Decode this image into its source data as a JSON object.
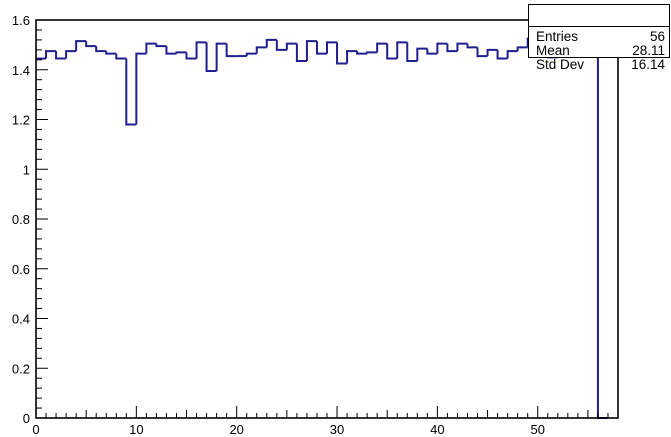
{
  "chart_data": {
    "type": "histogram",
    "title": "",
    "xlabel": "",
    "ylabel": "",
    "xlim": [
      0,
      58
    ],
    "ylim": [
      0,
      1.6
    ],
    "bin_width": 1,
    "x_major_ticks": [
      0,
      10,
      20,
      30,
      40,
      50
    ],
    "y_major_ticks": [
      0,
      0.2,
      0.4,
      0.6,
      0.8,
      1,
      1.2,
      1.4,
      1.6
    ],
    "y_tick_labels": [
      "0",
      "0.2",
      "0.4",
      "0.6",
      "0.8",
      "1",
      "1.2",
      "1.4",
      "1.6"
    ],
    "line_color": "#1f1f8f",
    "grid": false,
    "values": [
      1.445,
      1.475,
      1.445,
      1.475,
      1.515,
      1.495,
      1.475,
      1.465,
      1.445,
      1.18,
      1.465,
      1.505,
      1.495,
      1.465,
      1.47,
      1.445,
      1.51,
      1.395,
      1.505,
      1.455,
      1.455,
      1.465,
      1.49,
      1.52,
      1.48,
      1.505,
      1.435,
      1.515,
      1.465,
      1.51,
      1.425,
      1.475,
      1.465,
      1.47,
      1.505,
      1.445,
      1.51,
      1.435,
      1.485,
      1.465,
      1.505,
      1.475,
      1.505,
      1.49,
      1.455,
      1.48,
      1.445,
      1.475,
      1.49,
      1.525,
      1.48,
      1.45,
      1.46,
      1.495,
      1.51,
      1.47,
      0
    ]
  },
  "stats": {
    "title": "",
    "rows": [
      {
        "label": "Entries",
        "value": "56"
      },
      {
        "label": "Mean",
        "value": "28.11"
      },
      {
        "label": "Std Dev",
        "value": "16.14"
      }
    ]
  }
}
